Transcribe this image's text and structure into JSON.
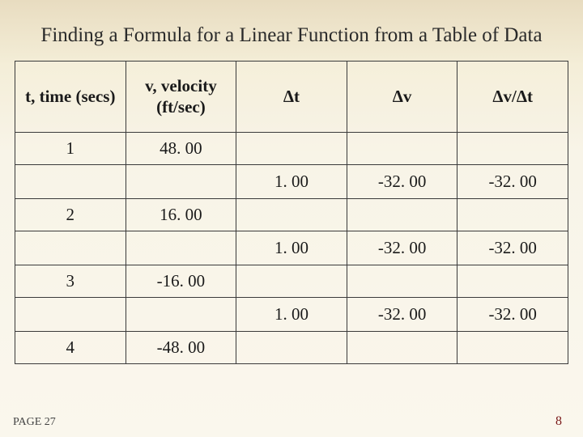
{
  "title": "Finding a Formula for a Linear Function from a Table of Data",
  "page_ref": "PAGE 27",
  "slide_number": "8",
  "table": {
    "columns": [
      {
        "label": "t, time (secs)"
      },
      {
        "label": "v, velocity (ft/sec)"
      },
      {
        "label": "Δt"
      },
      {
        "label": "Δv"
      },
      {
        "label": "Δv/Δt"
      }
    ],
    "rows": [
      {
        "type": "data",
        "cells": [
          "1",
          "48. 00",
          "",
          "",
          ""
        ]
      },
      {
        "type": "delta",
        "cells": [
          "",
          "",
          "1. 00",
          "-32. 00",
          "-32. 00"
        ]
      },
      {
        "type": "data",
        "cells": [
          "2",
          "16. 00",
          "",
          "",
          ""
        ]
      },
      {
        "type": "delta",
        "cells": [
          "",
          "",
          "1. 00",
          "-32. 00",
          "-32. 00"
        ]
      },
      {
        "type": "data",
        "cells": [
          "3",
          "-16. 00",
          "",
          "",
          ""
        ]
      },
      {
        "type": "delta",
        "cells": [
          "",
          "",
          "1. 00",
          "-32. 00",
          "-32. 00"
        ]
      },
      {
        "type": "data",
        "cells": [
          "4",
          "-48. 00",
          "",
          "",
          ""
        ]
      }
    ],
    "colors": {
      "border": "#3a3a3a",
      "text": "#1a1a1a",
      "accent": "#7a1a1a",
      "bg_gradient_top": "#e8dcc0",
      "bg_gradient_bottom": "#faf7ed"
    },
    "fonts": {
      "title_size_pt": 25,
      "cell_size_pt": 21,
      "family": "Georgia, serif"
    }
  }
}
